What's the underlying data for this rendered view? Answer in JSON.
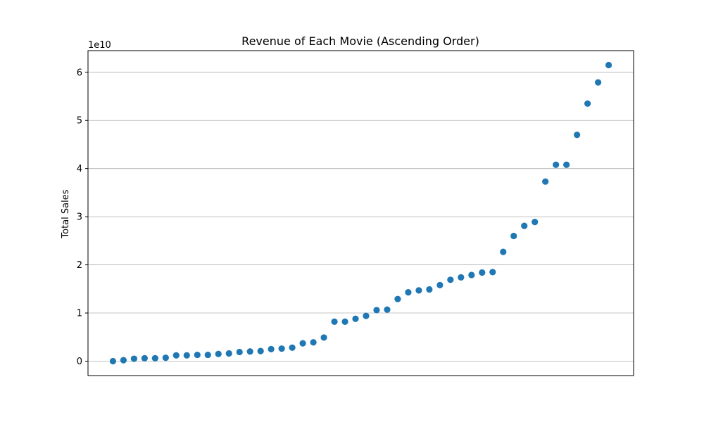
{
  "chart_data": {
    "type": "scatter",
    "title": "Revenue of Each Movie (Ascending Order)",
    "xlabel": "",
    "ylabel": "Total Sales",
    "offset_text": "1e10",
    "y_scale_multiplier": 10000000000,
    "ylim": [
      -0.3,
      6.45
    ],
    "yticks": [
      0,
      1,
      2,
      3,
      4,
      5,
      6
    ],
    "ytick_labels": [
      "0",
      "1",
      "2",
      "3",
      "4",
      "5",
      "6"
    ],
    "x_ticks_visible": false,
    "grid": "y-axis only",
    "point_color": "#1f77b4",
    "values": [
      0.0,
      0.02,
      0.05,
      0.06,
      0.06,
      0.07,
      0.12,
      0.12,
      0.13,
      0.13,
      0.15,
      0.16,
      0.19,
      0.2,
      0.21,
      0.25,
      0.26,
      0.28,
      0.37,
      0.39,
      0.49,
      0.82,
      0.82,
      0.88,
      0.94,
      1.06,
      1.07,
      1.29,
      1.43,
      1.47,
      1.49,
      1.58,
      1.69,
      1.74,
      1.79,
      1.84,
      1.85,
      2.27,
      2.6,
      2.81,
      2.89,
      3.73,
      4.08,
      4.08,
      4.7,
      5.35,
      5.79,
      6.15
    ]
  }
}
